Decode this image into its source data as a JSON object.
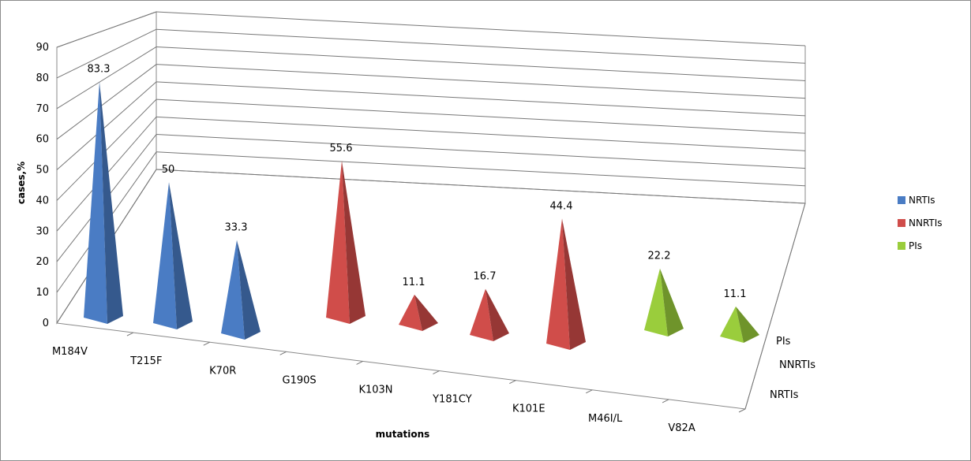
{
  "chart_data": {
    "type": "bar",
    "style": "3d-pyramid",
    "title": "",
    "xlabel": "mutations",
    "ylabel": "cases,%",
    "ylim": [
      0,
      90
    ],
    "yticks": [
      "0",
      "10",
      "20",
      "30",
      "40",
      "50",
      "60",
      "70",
      "80",
      "90"
    ],
    "depth_categories": [
      "NRTIs",
      "NNRTIs",
      "PIs"
    ],
    "categories": [
      "M184V",
      "T215F",
      "K70R",
      "G190S",
      "K103N",
      "Y181CY",
      "K101E",
      "M46I/L",
      "V82A"
    ],
    "series": [
      {
        "name": "NRTIs",
        "color": "#4a7cc4",
        "values": [
          83.3,
          50,
          33.3,
          null,
          null,
          null,
          null,
          null,
          null
        ],
        "labels": [
          "83.3",
          "50",
          "33.3",
          "",
          "",
          "",
          "",
          "",
          ""
        ]
      },
      {
        "name": "NNRTIs",
        "color": "#d04d4a",
        "values": [
          null,
          null,
          null,
          55.6,
          11.1,
          16.7,
          44.4,
          null,
          null
        ],
        "labels": [
          "",
          "",
          "",
          "55.6",
          "11.1",
          "16.7",
          "44.4",
          "",
          ""
        ]
      },
      {
        "name": "PIs",
        "color": "#9acd3c",
        "values": [
          null,
          null,
          null,
          null,
          null,
          null,
          null,
          22.2,
          11.1
        ],
        "labels": [
          "",
          "",
          "",
          "",
          "",
          "",
          "",
          "22.2",
          "11.1"
        ]
      }
    ],
    "grid": true,
    "legend": "right"
  }
}
